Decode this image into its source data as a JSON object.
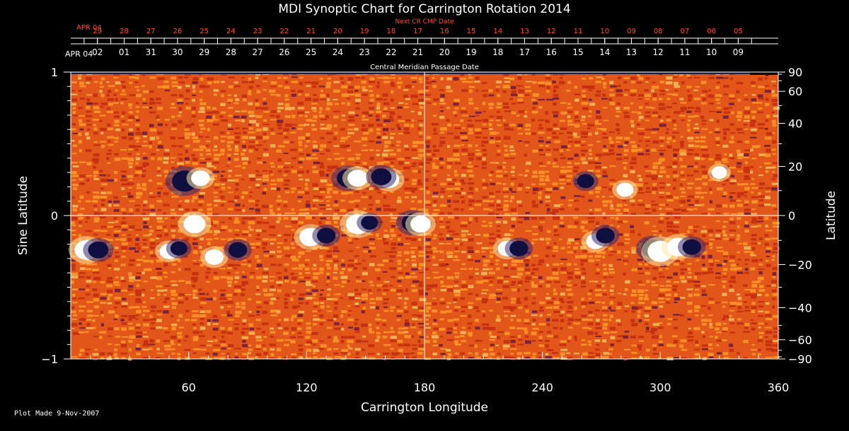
{
  "chart_data": {
    "type": "heatmap",
    "title": "MDI Synoptic Chart for Carrington Rotation 2014",
    "xlabel": "Carrington Longitude",
    "ylabel_left": "Sine Latitude",
    "ylabel_right": "Latitude",
    "xlim": [
      0,
      360
    ],
    "ylim": [
      -1,
      1
    ],
    "x_ticks": [
      60,
      120,
      180,
      240,
      300,
      360
    ],
    "x_minor_step": 10,
    "left_y_ticks": [
      {
        "value": 1,
        "label": "1"
      },
      {
        "value": 0,
        "label": "0"
      },
      {
        "value": -1,
        "label": "−1"
      }
    ],
    "left_y_minor_step": 0.1,
    "right_y_ticks": [
      {
        "deg": 90,
        "label": "90"
      },
      {
        "deg": 60,
        "label": "60"
      },
      {
        "deg": 40,
        "label": "40"
      },
      {
        "deg": 20,
        "label": "20"
      },
      {
        "deg": 0,
        "label": "0"
      },
      {
        "deg": -20,
        "label": "−20"
      },
      {
        "deg": -40,
        "label": "−40"
      },
      {
        "deg": -60,
        "label": "−60"
      },
      {
        "deg": -90,
        "label": "−90"
      }
    ],
    "right_y_minor_step_deg": 10,
    "cmp_axis": {
      "title": "Central Meridian Passage Date",
      "start_label": "APR 04",
      "labels": [
        "02",
        "01",
        "31",
        "30",
        "29",
        "28",
        "27",
        "26",
        "25",
        "24",
        "23",
        "22",
        "21",
        "20",
        "19",
        "18",
        "17",
        "16",
        "15",
        "14",
        "13",
        "12",
        "11",
        "10",
        "09"
      ]
    },
    "next_cr_axis": {
      "title": "Next CR CMP Date",
      "start_label": "APR 04",
      "labels": [
        "29",
        "28",
        "27",
        "26",
        "25",
        "24",
        "23",
        "22",
        "21",
        "20",
        "19",
        "18",
        "17",
        "16",
        "15",
        "14",
        "13",
        "12",
        "11",
        "10",
        "09",
        "08",
        "07",
        "06",
        "05"
      ]
    },
    "field_colors": {
      "background": "#e2561a",
      "positive": "#ffffff",
      "negative": "#101040",
      "mid": "#ff9a2a",
      "low": "#c02a10"
    },
    "active_regions": [
      {
        "lon": 58,
        "sinlat": 0.24,
        "polarity": "negative",
        "strength": 1.0
      },
      {
        "lon": 66,
        "sinlat": 0.26,
        "polarity": "positive",
        "strength": 0.6
      },
      {
        "lon": 63,
        "sinlat": -0.06,
        "polarity": "positive",
        "strength": 0.8
      },
      {
        "lon": 8,
        "sinlat": -0.24,
        "polarity": "positive",
        "strength": 0.9
      },
      {
        "lon": 14,
        "sinlat": -0.24,
        "polarity": "negative",
        "strength": 0.7
      },
      {
        "lon": 50,
        "sinlat": -0.25,
        "polarity": "positive",
        "strength": 0.6
      },
      {
        "lon": 55,
        "sinlat": -0.23,
        "polarity": "negative",
        "strength": 0.5
      },
      {
        "lon": 73,
        "sinlat": -0.29,
        "polarity": "positive",
        "strength": 0.6
      },
      {
        "lon": 85,
        "sinlat": -0.24,
        "polarity": "negative",
        "strength": 0.6
      },
      {
        "lon": 141,
        "sinlat": 0.26,
        "polarity": "negative",
        "strength": 0.8
      },
      {
        "lon": 146,
        "sinlat": 0.26,
        "polarity": "positive",
        "strength": 0.7
      },
      {
        "lon": 162,
        "sinlat": 0.25,
        "polarity": "positive",
        "strength": 0.7
      },
      {
        "lon": 158,
        "sinlat": 0.27,
        "polarity": "negative",
        "strength": 0.7
      },
      {
        "lon": 146,
        "sinlat": -0.06,
        "polarity": "positive",
        "strength": 0.9
      },
      {
        "lon": 152,
        "sinlat": -0.05,
        "polarity": "negative",
        "strength": 0.5
      },
      {
        "lon": 122,
        "sinlat": -0.15,
        "polarity": "positive",
        "strength": 0.8
      },
      {
        "lon": 130,
        "sinlat": -0.14,
        "polarity": "negative",
        "strength": 0.6
      },
      {
        "lon": 174,
        "sinlat": -0.05,
        "polarity": "negative",
        "strength": 0.8
      },
      {
        "lon": 178,
        "sinlat": -0.06,
        "polarity": "positive",
        "strength": 0.7
      },
      {
        "lon": 222,
        "sinlat": -0.23,
        "polarity": "positive",
        "strength": 0.6
      },
      {
        "lon": 228,
        "sinlat": -0.23,
        "polarity": "negative",
        "strength": 0.6
      },
      {
        "lon": 267,
        "sinlat": -0.18,
        "polarity": "positive",
        "strength": 0.6
      },
      {
        "lon": 272,
        "sinlat": -0.14,
        "polarity": "negative",
        "strength": 0.6
      },
      {
        "lon": 296,
        "sinlat": -0.23,
        "polarity": "negative",
        "strength": 0.8
      },
      {
        "lon": 300,
        "sinlat": -0.25,
        "polarity": "positive",
        "strength": 1.0
      },
      {
        "lon": 309,
        "sinlat": -0.22,
        "polarity": "positive",
        "strength": 0.8
      },
      {
        "lon": 316,
        "sinlat": -0.22,
        "polarity": "negative",
        "strength": 0.6
      },
      {
        "lon": 282,
        "sinlat": 0.18,
        "polarity": "positive",
        "strength": 0.5
      },
      {
        "lon": 262,
        "sinlat": 0.24,
        "polarity": "negative",
        "strength": 0.5
      },
      {
        "lon": 330,
        "sinlat": 0.3,
        "polarity": "positive",
        "strength": 0.4
      }
    ]
  },
  "footer": {
    "plot_made": "Plot Made  9-Nov-2007"
  }
}
